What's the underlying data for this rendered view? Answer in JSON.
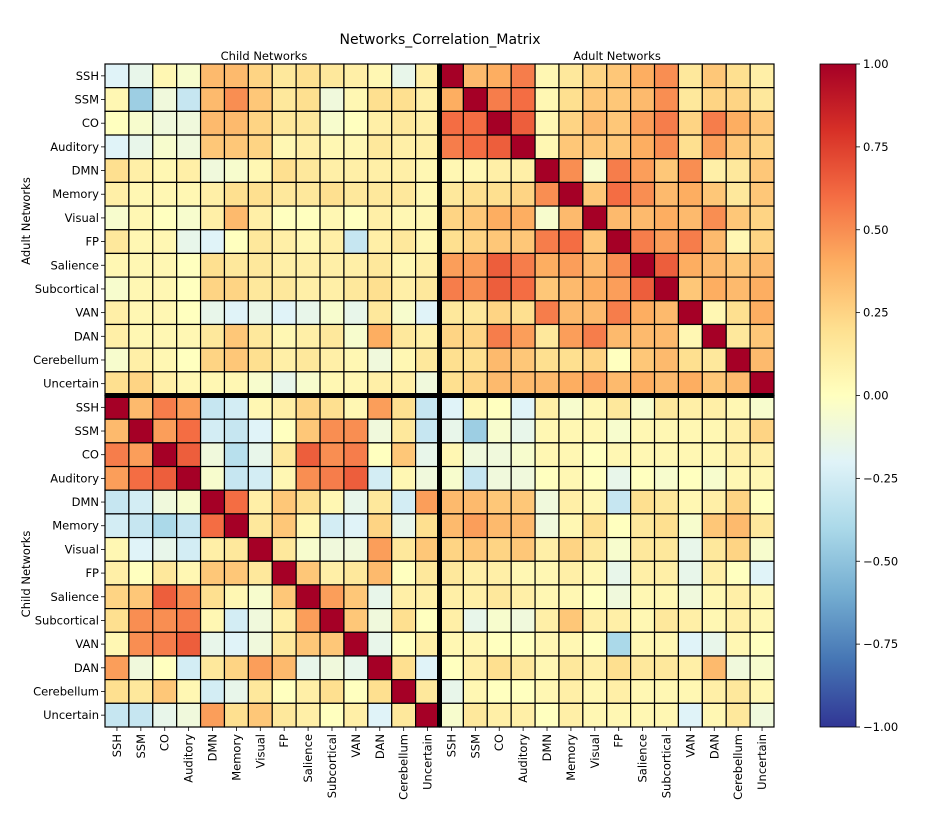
{
  "chart_data": {
    "type": "heatmap",
    "title": "Networks_Correlation_Matrix",
    "top_group_labels": [
      "Child Networks",
      "Adult Networks"
    ],
    "left_group_labels": [
      "Adult Networks",
      "Child Networks"
    ],
    "row_labels": [
      "SSH",
      "SSM",
      "CO",
      "Auditory",
      "DMN",
      "Memory",
      "Visual",
      "FP",
      "Salience",
      "Subcortical",
      "VAN",
      "DAN",
      "Cerebellum",
      "Uncertain",
      "SSH",
      "SSM",
      "CO",
      "Auditory",
      "DMN",
      "Memory",
      "Visual",
      "FP",
      "Salience",
      "Subcortical",
      "VAN",
      "DAN",
      "Cerebellum",
      "Uncertain"
    ],
    "col_labels": [
      "SSH",
      "SSM",
      "CO",
      "Auditory",
      "DMN",
      "Memory",
      "Visual",
      "FP",
      "Salience",
      "Subcortical",
      "VAN",
      "DAN",
      "Cerebellum",
      "Uncertain",
      "SSH",
      "SSM",
      "CO",
      "Auditory",
      "DMN",
      "Memory",
      "Visual",
      "FP",
      "Salience",
      "Subcortical",
      "VAN",
      "DAN",
      "Cerebellum",
      "Uncertain"
    ],
    "vmin": -1.0,
    "vmax": 1.0,
    "colormap": "RdYlBu_r",
    "colorbar_ticks": [
      "1.00",
      "0.75",
      "0.50",
      "0.25",
      "0.00",
      "−0.25",
      "−0.50",
      "−0.75",
      "−1.00"
    ],
    "colorbar_tick_values": [
      1.0,
      0.75,
      0.5,
      0.25,
      0.0,
      -0.25,
      -0.5,
      -0.75,
      -1.0
    ],
    "values": [
      [
        -0.2,
        -0.15,
        0.05,
        -0.05,
        0.35,
        0.35,
        0.25,
        0.15,
        0.2,
        0.15,
        0.1,
        0.05,
        -0.15,
        0.1,
        1.0,
        0.35,
        0.4,
        0.55,
        0.05,
        0.15,
        0.25,
        0.3,
        0.4,
        0.5,
        0.15,
        0.3,
        0.2,
        0.1
      ],
      [
        0.05,
        -0.45,
        -0.1,
        -0.3,
        0.35,
        0.5,
        0.3,
        0.15,
        0.2,
        -0.1,
        0.05,
        0.2,
        0.2,
        0.1,
        0.4,
        1.0,
        0.55,
        0.6,
        0.05,
        0.2,
        0.3,
        0.3,
        0.35,
        0.5,
        0.15,
        0.25,
        0.25,
        0.15
      ],
      [
        0.0,
        -0.05,
        -0.1,
        -0.1,
        0.35,
        0.35,
        0.25,
        0.15,
        0.15,
        -0.05,
        0.0,
        0.1,
        0.15,
        0.1,
        0.6,
        0.6,
        1.0,
        0.65,
        0.05,
        0.25,
        0.35,
        0.3,
        0.45,
        0.55,
        0.25,
        0.55,
        0.4,
        0.3
      ],
      [
        -0.2,
        -0.15,
        -0.05,
        -0.1,
        0.3,
        0.3,
        0.25,
        0.05,
        0.1,
        0.05,
        0.05,
        0.15,
        0.1,
        0.1,
        0.55,
        0.6,
        0.65,
        1.0,
        0.05,
        0.3,
        0.3,
        0.3,
        0.4,
        0.5,
        0.2,
        0.45,
        0.3,
        0.25
      ],
      [
        0.2,
        0.1,
        0.05,
        0.1,
        -0.1,
        -0.05,
        0.05,
        0.2,
        0.15,
        0.1,
        0.1,
        0.1,
        0.1,
        0.05,
        0.05,
        0.05,
        0.1,
        0.1,
        1.0,
        0.5,
        -0.05,
        0.55,
        0.45,
        0.3,
        0.5,
        0.1,
        0.15,
        0.3
      ],
      [
        0.1,
        0.05,
        0.05,
        0.05,
        0.1,
        0.2,
        0.2,
        0.15,
        0.15,
        0.2,
        0.15,
        0.15,
        0.15,
        0.05,
        0.15,
        0.2,
        0.2,
        0.25,
        0.5,
        1.0,
        0.3,
        0.6,
        0.5,
        0.35,
        0.4,
        0.3,
        0.15,
        0.3
      ],
      [
        -0.05,
        0.05,
        0.0,
        -0.05,
        0.1,
        0.35,
        0.1,
        0.0,
        0.0,
        0.05,
        0.0,
        0.1,
        0.05,
        0.05,
        0.25,
        0.3,
        0.4,
        0.4,
        -0.05,
        0.35,
        1.0,
        0.35,
        0.35,
        0.4,
        0.35,
        0.5,
        0.3,
        0.25
      ],
      [
        0.15,
        0.05,
        0.05,
        -0.15,
        -0.2,
        0.0,
        0.15,
        0.1,
        0.05,
        0.1,
        -0.3,
        0.1,
        0.15,
        0.05,
        0.2,
        0.25,
        0.3,
        0.3,
        0.55,
        0.6,
        0.3,
        1.0,
        0.55,
        0.45,
        0.55,
        0.35,
        0.05,
        0.25
      ],
      [
        0.05,
        0.05,
        0.05,
        0.0,
        0.2,
        0.15,
        0.15,
        0.1,
        0.1,
        0.1,
        0.1,
        0.15,
        0.05,
        0.1,
        0.45,
        0.45,
        0.65,
        0.55,
        0.4,
        0.45,
        0.35,
        0.5,
        1.0,
        0.65,
        0.4,
        0.35,
        0.3,
        0.35
      ],
      [
        -0.05,
        0.05,
        0.05,
        0.0,
        0.25,
        0.25,
        0.15,
        0.15,
        0.1,
        0.1,
        0.15,
        0.2,
        0.1,
        0.15,
        0.55,
        0.5,
        0.65,
        0.6,
        0.3,
        0.35,
        0.4,
        0.45,
        0.65,
        1.0,
        0.3,
        0.4,
        0.35,
        0.4
      ],
      [
        0.1,
        0.05,
        0.05,
        0.0,
        -0.15,
        -0.2,
        -0.15,
        -0.2,
        -0.15,
        -0.05,
        -0.15,
        0.15,
        -0.05,
        -0.2,
        0.15,
        0.15,
        0.25,
        0.2,
        0.55,
        0.35,
        0.35,
        0.55,
        0.4,
        0.35,
        1.0,
        0.05,
        0.2,
        0.4
      ],
      [
        0.1,
        0.05,
        0.05,
        0.05,
        0.15,
        0.3,
        0.15,
        0.05,
        0.1,
        0.15,
        -0.05,
        0.4,
        0.15,
        0.1,
        0.25,
        0.25,
        0.55,
        0.45,
        0.15,
        0.45,
        0.55,
        0.35,
        0.35,
        0.35,
        0.05,
        1.0,
        0.15,
        0.3
      ],
      [
        -0.05,
        0.1,
        0.05,
        0.0,
        0.25,
        0.3,
        0.2,
        0.1,
        0.15,
        0.1,
        0.05,
        -0.1,
        0.05,
        0.15,
        0.2,
        0.2,
        0.35,
        0.3,
        0.2,
        0.2,
        0.25,
        0.0,
        0.3,
        0.35,
        0.2,
        0.15,
        1.0,
        0.35
      ],
      [
        0.2,
        0.25,
        0.1,
        0.05,
        0.05,
        0.05,
        -0.05,
        -0.15,
        -0.05,
        0.05,
        0.05,
        0.1,
        0.1,
        -0.1,
        0.2,
        0.25,
        0.35,
        0.35,
        0.35,
        0.4,
        0.45,
        0.35,
        0.4,
        0.35,
        0.4,
        0.3,
        0.35,
        1.0
      ],
      [
        1.0,
        0.35,
        0.55,
        0.45,
        -0.3,
        -0.25,
        0.05,
        0.1,
        0.25,
        0.2,
        0.05,
        0.45,
        0.2,
        -0.3,
        -0.2,
        0.05,
        0.0,
        -0.2,
        0.1,
        -0.05,
        0.05,
        0.15,
        -0.05,
        0.15,
        0.1,
        0.1,
        0.05,
        -0.05
      ],
      [
        0.35,
        1.0,
        0.45,
        0.6,
        -0.25,
        -0.3,
        -0.2,
        0.0,
        0.3,
        0.5,
        0.5,
        -0.1,
        0.15,
        -0.3,
        -0.15,
        -0.45,
        -0.05,
        -0.15,
        0.05,
        0.05,
        0.05,
        -0.05,
        0.05,
        0.05,
        0.05,
        0.05,
        0.1,
        0.25
      ],
      [
        0.55,
        0.45,
        1.0,
        0.65,
        -0.1,
        -0.35,
        -0.15,
        0.15,
        0.65,
        0.5,
        0.55,
        0.0,
        0.3,
        -0.15,
        0.05,
        -0.1,
        -0.1,
        -0.05,
        0.05,
        0.05,
        0.0,
        0.05,
        0.05,
        0.05,
        0.05,
        0.05,
        0.1,
        0.1
      ],
      [
        0.45,
        0.6,
        0.65,
        1.0,
        -0.05,
        -0.3,
        -0.25,
        0.05,
        0.5,
        0.55,
        0.65,
        -0.25,
        0.05,
        -0.1,
        -0.05,
        -0.3,
        -0.1,
        -0.1,
        0.0,
        0.05,
        0.0,
        -0.15,
        0.0,
        -0.05,
        0.0,
        -0.05,
        0.05,
        0.05
      ],
      [
        -0.3,
        -0.25,
        -0.1,
        -0.05,
        1.0,
        0.6,
        0.1,
        0.3,
        0.2,
        0.05,
        -0.15,
        0.15,
        -0.25,
        0.45,
        0.35,
        0.35,
        0.3,
        0.3,
        -0.1,
        0.1,
        0.05,
        -0.3,
        0.2,
        0.15,
        0.05,
        0.1,
        0.25,
        0.0
      ],
      [
        -0.25,
        -0.3,
        -0.4,
        -0.3,
        0.6,
        1.0,
        0.15,
        0.3,
        0.05,
        -0.25,
        -0.2,
        0.25,
        -0.15,
        0.2,
        0.35,
        0.45,
        0.35,
        0.35,
        -0.1,
        0.05,
        0.2,
        0.0,
        0.15,
        0.2,
        -0.05,
        0.3,
        0.35,
        0.15
      ],
      [
        0.05,
        -0.2,
        -0.15,
        -0.25,
        0.1,
        0.15,
        1.0,
        0.15,
        -0.05,
        -0.1,
        -0.1,
        0.45,
        0.15,
        0.3,
        0.25,
        0.3,
        0.25,
        0.3,
        0.1,
        0.25,
        0.15,
        -0.05,
        0.15,
        0.15,
        -0.15,
        0.15,
        0.25,
        -0.05
      ],
      [
        0.1,
        0.0,
        0.15,
        0.05,
        0.3,
        0.3,
        0.15,
        1.0,
        0.3,
        0.1,
        0.15,
        0.35,
        0.0,
        0.15,
        0.15,
        0.1,
        0.1,
        0.05,
        0.05,
        0.1,
        0.05,
        -0.15,
        0.1,
        0.1,
        -0.15,
        0.1,
        0.0,
        -0.2
      ],
      [
        0.25,
        0.3,
        0.65,
        0.5,
        0.2,
        0.05,
        -0.05,
        0.3,
        1.0,
        0.45,
        0.3,
        -0.15,
        0.1,
        0.1,
        0.1,
        0.1,
        0.15,
        0.1,
        0.05,
        0.05,
        0.0,
        -0.1,
        0.05,
        0.05,
        -0.1,
        0.05,
        0.1,
        0.05
      ],
      [
        0.2,
        0.5,
        0.5,
        0.55,
        0.05,
        -0.25,
        -0.1,
        0.1,
        0.45,
        1.0,
        0.3,
        -0.1,
        0.2,
        0.0,
        0.1,
        -0.15,
        -0.05,
        -0.1,
        0.1,
        0.3,
        0.1,
        0.1,
        0.05,
        0.15,
        0.1,
        0.05,
        0.1,
        0.05
      ],
      [
        0.05,
        0.5,
        0.55,
        0.65,
        -0.15,
        -0.2,
        -0.1,
        0.15,
        0.3,
        0.3,
        1.0,
        -0.15,
        0.0,
        0.1,
        0.05,
        0.05,
        0.0,
        0.0,
        0.05,
        0.05,
        0.0,
        -0.4,
        0.05,
        0.05,
        -0.2,
        -0.15,
        0.05,
        0.0
      ],
      [
        0.45,
        -0.1,
        0.0,
        -0.25,
        0.15,
        0.25,
        0.45,
        0.35,
        -0.15,
        -0.1,
        -0.15,
        1.0,
        0.2,
        -0.2,
        0.0,
        0.1,
        0.2,
        0.15,
        0.05,
        0.15,
        0.1,
        0.2,
        0.15,
        0.15,
        0.1,
        0.35,
        -0.1,
        -0.05
      ],
      [
        0.2,
        0.15,
        0.3,
        0.05,
        -0.25,
        -0.15,
        0.15,
        0.0,
        0.1,
        0.2,
        0.0,
        0.2,
        1.0,
        0.15,
        -0.15,
        0.05,
        0.0,
        0.0,
        0.05,
        0.1,
        0.05,
        0.1,
        0.05,
        0.05,
        0.05,
        0.1,
        0.15,
        0.05
      ],
      [
        -0.3,
        -0.3,
        -0.15,
        -0.1,
        0.45,
        0.2,
        0.3,
        0.15,
        0.1,
        0.0,
        0.1,
        -0.2,
        0.15,
        1.0,
        -0.05,
        0.15,
        0.1,
        0.1,
        0.0,
        0.1,
        0.05,
        0.05,
        0.05,
        0.05,
        -0.2,
        0.05,
        0.15,
        -0.1
      ]
    ]
  }
}
